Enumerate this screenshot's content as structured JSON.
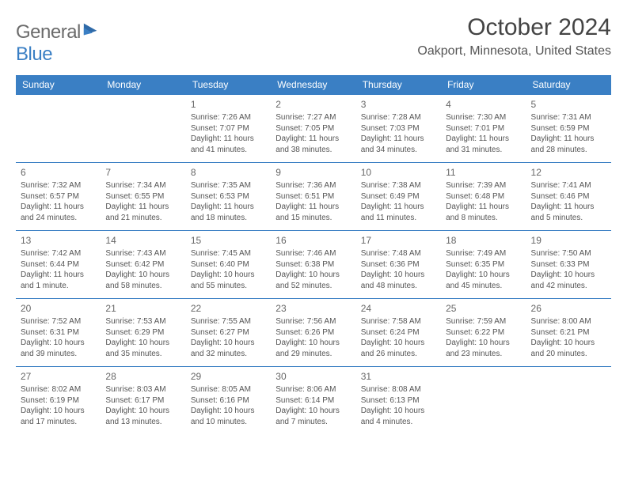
{
  "logo": {
    "word1": "General",
    "word2": "Blue"
  },
  "header": {
    "month_title": "October 2024",
    "location": "Oakport, Minnesota, United States"
  },
  "colors": {
    "header_bg": "#3a7fc4",
    "header_text": "#ffffff",
    "rule": "#3a7fc4",
    "text": "#555555",
    "logo_gray": "#6b6b6b",
    "logo_blue": "#3a7fc4",
    "page_bg": "#ffffff"
  },
  "typography": {
    "month_title_fontsize": 30,
    "location_fontsize": 16,
    "dayheader_fontsize": 12,
    "daynum_fontsize": 12,
    "body_fontsize": 10
  },
  "day_headers": [
    "Sunday",
    "Monday",
    "Tuesday",
    "Wednesday",
    "Thursday",
    "Friday",
    "Saturday"
  ],
  "weeks": [
    [
      null,
      null,
      {
        "n": "1",
        "sunrise": "Sunrise: 7:26 AM",
        "sunset": "Sunset: 7:07 PM",
        "daylight": "Daylight: 11 hours and 41 minutes."
      },
      {
        "n": "2",
        "sunrise": "Sunrise: 7:27 AM",
        "sunset": "Sunset: 7:05 PM",
        "daylight": "Daylight: 11 hours and 38 minutes."
      },
      {
        "n": "3",
        "sunrise": "Sunrise: 7:28 AM",
        "sunset": "Sunset: 7:03 PM",
        "daylight": "Daylight: 11 hours and 34 minutes."
      },
      {
        "n": "4",
        "sunrise": "Sunrise: 7:30 AM",
        "sunset": "Sunset: 7:01 PM",
        "daylight": "Daylight: 11 hours and 31 minutes."
      },
      {
        "n": "5",
        "sunrise": "Sunrise: 7:31 AM",
        "sunset": "Sunset: 6:59 PM",
        "daylight": "Daylight: 11 hours and 28 minutes."
      }
    ],
    [
      {
        "n": "6",
        "sunrise": "Sunrise: 7:32 AM",
        "sunset": "Sunset: 6:57 PM",
        "daylight": "Daylight: 11 hours and 24 minutes."
      },
      {
        "n": "7",
        "sunrise": "Sunrise: 7:34 AM",
        "sunset": "Sunset: 6:55 PM",
        "daylight": "Daylight: 11 hours and 21 minutes."
      },
      {
        "n": "8",
        "sunrise": "Sunrise: 7:35 AM",
        "sunset": "Sunset: 6:53 PM",
        "daylight": "Daylight: 11 hours and 18 minutes."
      },
      {
        "n": "9",
        "sunrise": "Sunrise: 7:36 AM",
        "sunset": "Sunset: 6:51 PM",
        "daylight": "Daylight: 11 hours and 15 minutes."
      },
      {
        "n": "10",
        "sunrise": "Sunrise: 7:38 AM",
        "sunset": "Sunset: 6:49 PM",
        "daylight": "Daylight: 11 hours and 11 minutes."
      },
      {
        "n": "11",
        "sunrise": "Sunrise: 7:39 AM",
        "sunset": "Sunset: 6:48 PM",
        "daylight": "Daylight: 11 hours and 8 minutes."
      },
      {
        "n": "12",
        "sunrise": "Sunrise: 7:41 AM",
        "sunset": "Sunset: 6:46 PM",
        "daylight": "Daylight: 11 hours and 5 minutes."
      }
    ],
    [
      {
        "n": "13",
        "sunrise": "Sunrise: 7:42 AM",
        "sunset": "Sunset: 6:44 PM",
        "daylight": "Daylight: 11 hours and 1 minute."
      },
      {
        "n": "14",
        "sunrise": "Sunrise: 7:43 AM",
        "sunset": "Sunset: 6:42 PM",
        "daylight": "Daylight: 10 hours and 58 minutes."
      },
      {
        "n": "15",
        "sunrise": "Sunrise: 7:45 AM",
        "sunset": "Sunset: 6:40 PM",
        "daylight": "Daylight: 10 hours and 55 minutes."
      },
      {
        "n": "16",
        "sunrise": "Sunrise: 7:46 AM",
        "sunset": "Sunset: 6:38 PM",
        "daylight": "Daylight: 10 hours and 52 minutes."
      },
      {
        "n": "17",
        "sunrise": "Sunrise: 7:48 AM",
        "sunset": "Sunset: 6:36 PM",
        "daylight": "Daylight: 10 hours and 48 minutes."
      },
      {
        "n": "18",
        "sunrise": "Sunrise: 7:49 AM",
        "sunset": "Sunset: 6:35 PM",
        "daylight": "Daylight: 10 hours and 45 minutes."
      },
      {
        "n": "19",
        "sunrise": "Sunrise: 7:50 AM",
        "sunset": "Sunset: 6:33 PM",
        "daylight": "Daylight: 10 hours and 42 minutes."
      }
    ],
    [
      {
        "n": "20",
        "sunrise": "Sunrise: 7:52 AM",
        "sunset": "Sunset: 6:31 PM",
        "daylight": "Daylight: 10 hours and 39 minutes."
      },
      {
        "n": "21",
        "sunrise": "Sunrise: 7:53 AM",
        "sunset": "Sunset: 6:29 PM",
        "daylight": "Daylight: 10 hours and 35 minutes."
      },
      {
        "n": "22",
        "sunrise": "Sunrise: 7:55 AM",
        "sunset": "Sunset: 6:27 PM",
        "daylight": "Daylight: 10 hours and 32 minutes."
      },
      {
        "n": "23",
        "sunrise": "Sunrise: 7:56 AM",
        "sunset": "Sunset: 6:26 PM",
        "daylight": "Daylight: 10 hours and 29 minutes."
      },
      {
        "n": "24",
        "sunrise": "Sunrise: 7:58 AM",
        "sunset": "Sunset: 6:24 PM",
        "daylight": "Daylight: 10 hours and 26 minutes."
      },
      {
        "n": "25",
        "sunrise": "Sunrise: 7:59 AM",
        "sunset": "Sunset: 6:22 PM",
        "daylight": "Daylight: 10 hours and 23 minutes."
      },
      {
        "n": "26",
        "sunrise": "Sunrise: 8:00 AM",
        "sunset": "Sunset: 6:21 PM",
        "daylight": "Daylight: 10 hours and 20 minutes."
      }
    ],
    [
      {
        "n": "27",
        "sunrise": "Sunrise: 8:02 AM",
        "sunset": "Sunset: 6:19 PM",
        "daylight": "Daylight: 10 hours and 17 minutes."
      },
      {
        "n": "28",
        "sunrise": "Sunrise: 8:03 AM",
        "sunset": "Sunset: 6:17 PM",
        "daylight": "Daylight: 10 hours and 13 minutes."
      },
      {
        "n": "29",
        "sunrise": "Sunrise: 8:05 AM",
        "sunset": "Sunset: 6:16 PM",
        "daylight": "Daylight: 10 hours and 10 minutes."
      },
      {
        "n": "30",
        "sunrise": "Sunrise: 8:06 AM",
        "sunset": "Sunset: 6:14 PM",
        "daylight": "Daylight: 10 hours and 7 minutes."
      },
      {
        "n": "31",
        "sunrise": "Sunrise: 8:08 AM",
        "sunset": "Sunset: 6:13 PM",
        "daylight": "Daylight: 10 hours and 4 minutes."
      },
      null,
      null
    ]
  ]
}
